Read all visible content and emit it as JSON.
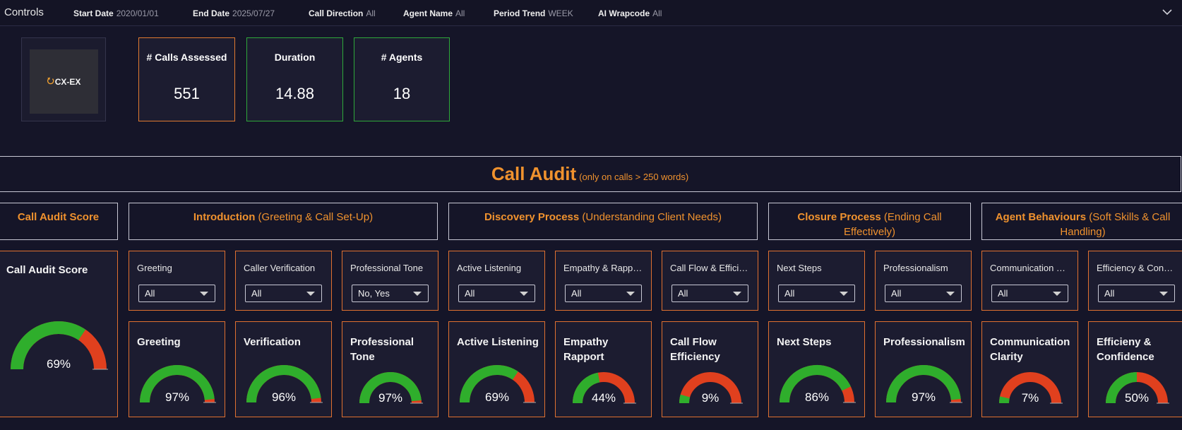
{
  "controls": {
    "title": "Controls",
    "filters": [
      {
        "key": "Start Date",
        "value": "2020/01/01"
      },
      {
        "key": "End Date",
        "value": "2025/07/27"
      },
      {
        "key": "Call Direction",
        "value": "All"
      },
      {
        "key": "Agent Name",
        "value": "All"
      },
      {
        "key": "Period Trend",
        "value": "WEEK"
      },
      {
        "key": "AI Wrapcode",
        "value": "All"
      }
    ]
  },
  "logo": {
    "text": "CX-EX"
  },
  "kpis": [
    {
      "label": "# Calls Assessed",
      "value": "551",
      "border": "#e07a30"
    },
    {
      "label": "Duration",
      "value": "14.88",
      "border": "#2ea83a"
    },
    {
      "label": "# Agents",
      "value": "18",
      "border": "#2ea83a"
    }
  ],
  "banner": {
    "title": "Call Audit",
    "subtitle": "(only on calls > 250 words)"
  },
  "sections": [
    {
      "bold": "Call Audit Score",
      "rest": ""
    },
    {
      "bold": "Introduction",
      "rest": " (Greeting & Call Set-Up)"
    },
    {
      "bold": "Discovery Process",
      "rest": " (Understanding Client Needs)"
    },
    {
      "bold": "Closure Process",
      "rest": " (Ending Call Effectively)"
    },
    {
      "bold": "Agent Behaviours",
      "rest": " (Soft Skills & Call Handling)"
    }
  ],
  "main_score": {
    "title": "Call Audit Score",
    "value_label": "69%",
    "value": 0.69
  },
  "slicers": [
    {
      "label": "Greeting",
      "value": "All"
    },
    {
      "label": "Caller Verification",
      "value": "All"
    },
    {
      "label": "Professional Tone",
      "value": "No, Yes"
    },
    {
      "label": "Active Listening",
      "value": "All"
    },
    {
      "label": "Empathy & Rapp…",
      "value": "All"
    },
    {
      "label": "Call Flow & Effici…",
      "value": "All"
    },
    {
      "label": "Next Steps",
      "value": "All"
    },
    {
      "label": "Professionalism",
      "value": "All"
    },
    {
      "label": "Communication …",
      "value": "All"
    },
    {
      "label": "Efficiency & Con…",
      "value": "All"
    }
  ],
  "gauges": [
    {
      "title_lines": [
        "Greeting"
      ],
      "value_label": "97%",
      "value": 0.97
    },
    {
      "title_lines": [
        "Verification"
      ],
      "value_label": "96%",
      "value": 0.96
    },
    {
      "title_lines": [
        "Professional",
        "Tone"
      ],
      "value_label": "97%",
      "value": 0.97
    },
    {
      "title_lines": [
        "Active Listening"
      ],
      "value_label": "69%",
      "value": 0.69
    },
    {
      "title_lines": [
        "Empathy",
        "Rapport"
      ],
      "value_label": "44%",
      "value": 0.44
    },
    {
      "title_lines": [
        "Call Flow",
        "Efficiency"
      ],
      "value_label": "9%",
      "value": 0.09
    },
    {
      "title_lines": [
        "Next Steps"
      ],
      "value_label": "86%",
      "value": 0.86
    },
    {
      "title_lines": [
        "Professionalism"
      ],
      "value_label": "97%",
      "value": 0.97
    },
    {
      "title_lines": [
        "Communication",
        "Clarity"
      ],
      "value_label": "7%",
      "value": 0.07
    },
    {
      "title_lines": [
        "Efficieny &",
        "Confidence"
      ],
      "value_label": "50%",
      "value": 0.5
    }
  ],
  "colors": {
    "good": "#2fae2c",
    "bad": "#e0401e",
    "accent": "#f0922e"
  },
  "icons": {
    "collapse": "chevron-down-icon",
    "dropdown": "dropdown-arrow-icon"
  }
}
